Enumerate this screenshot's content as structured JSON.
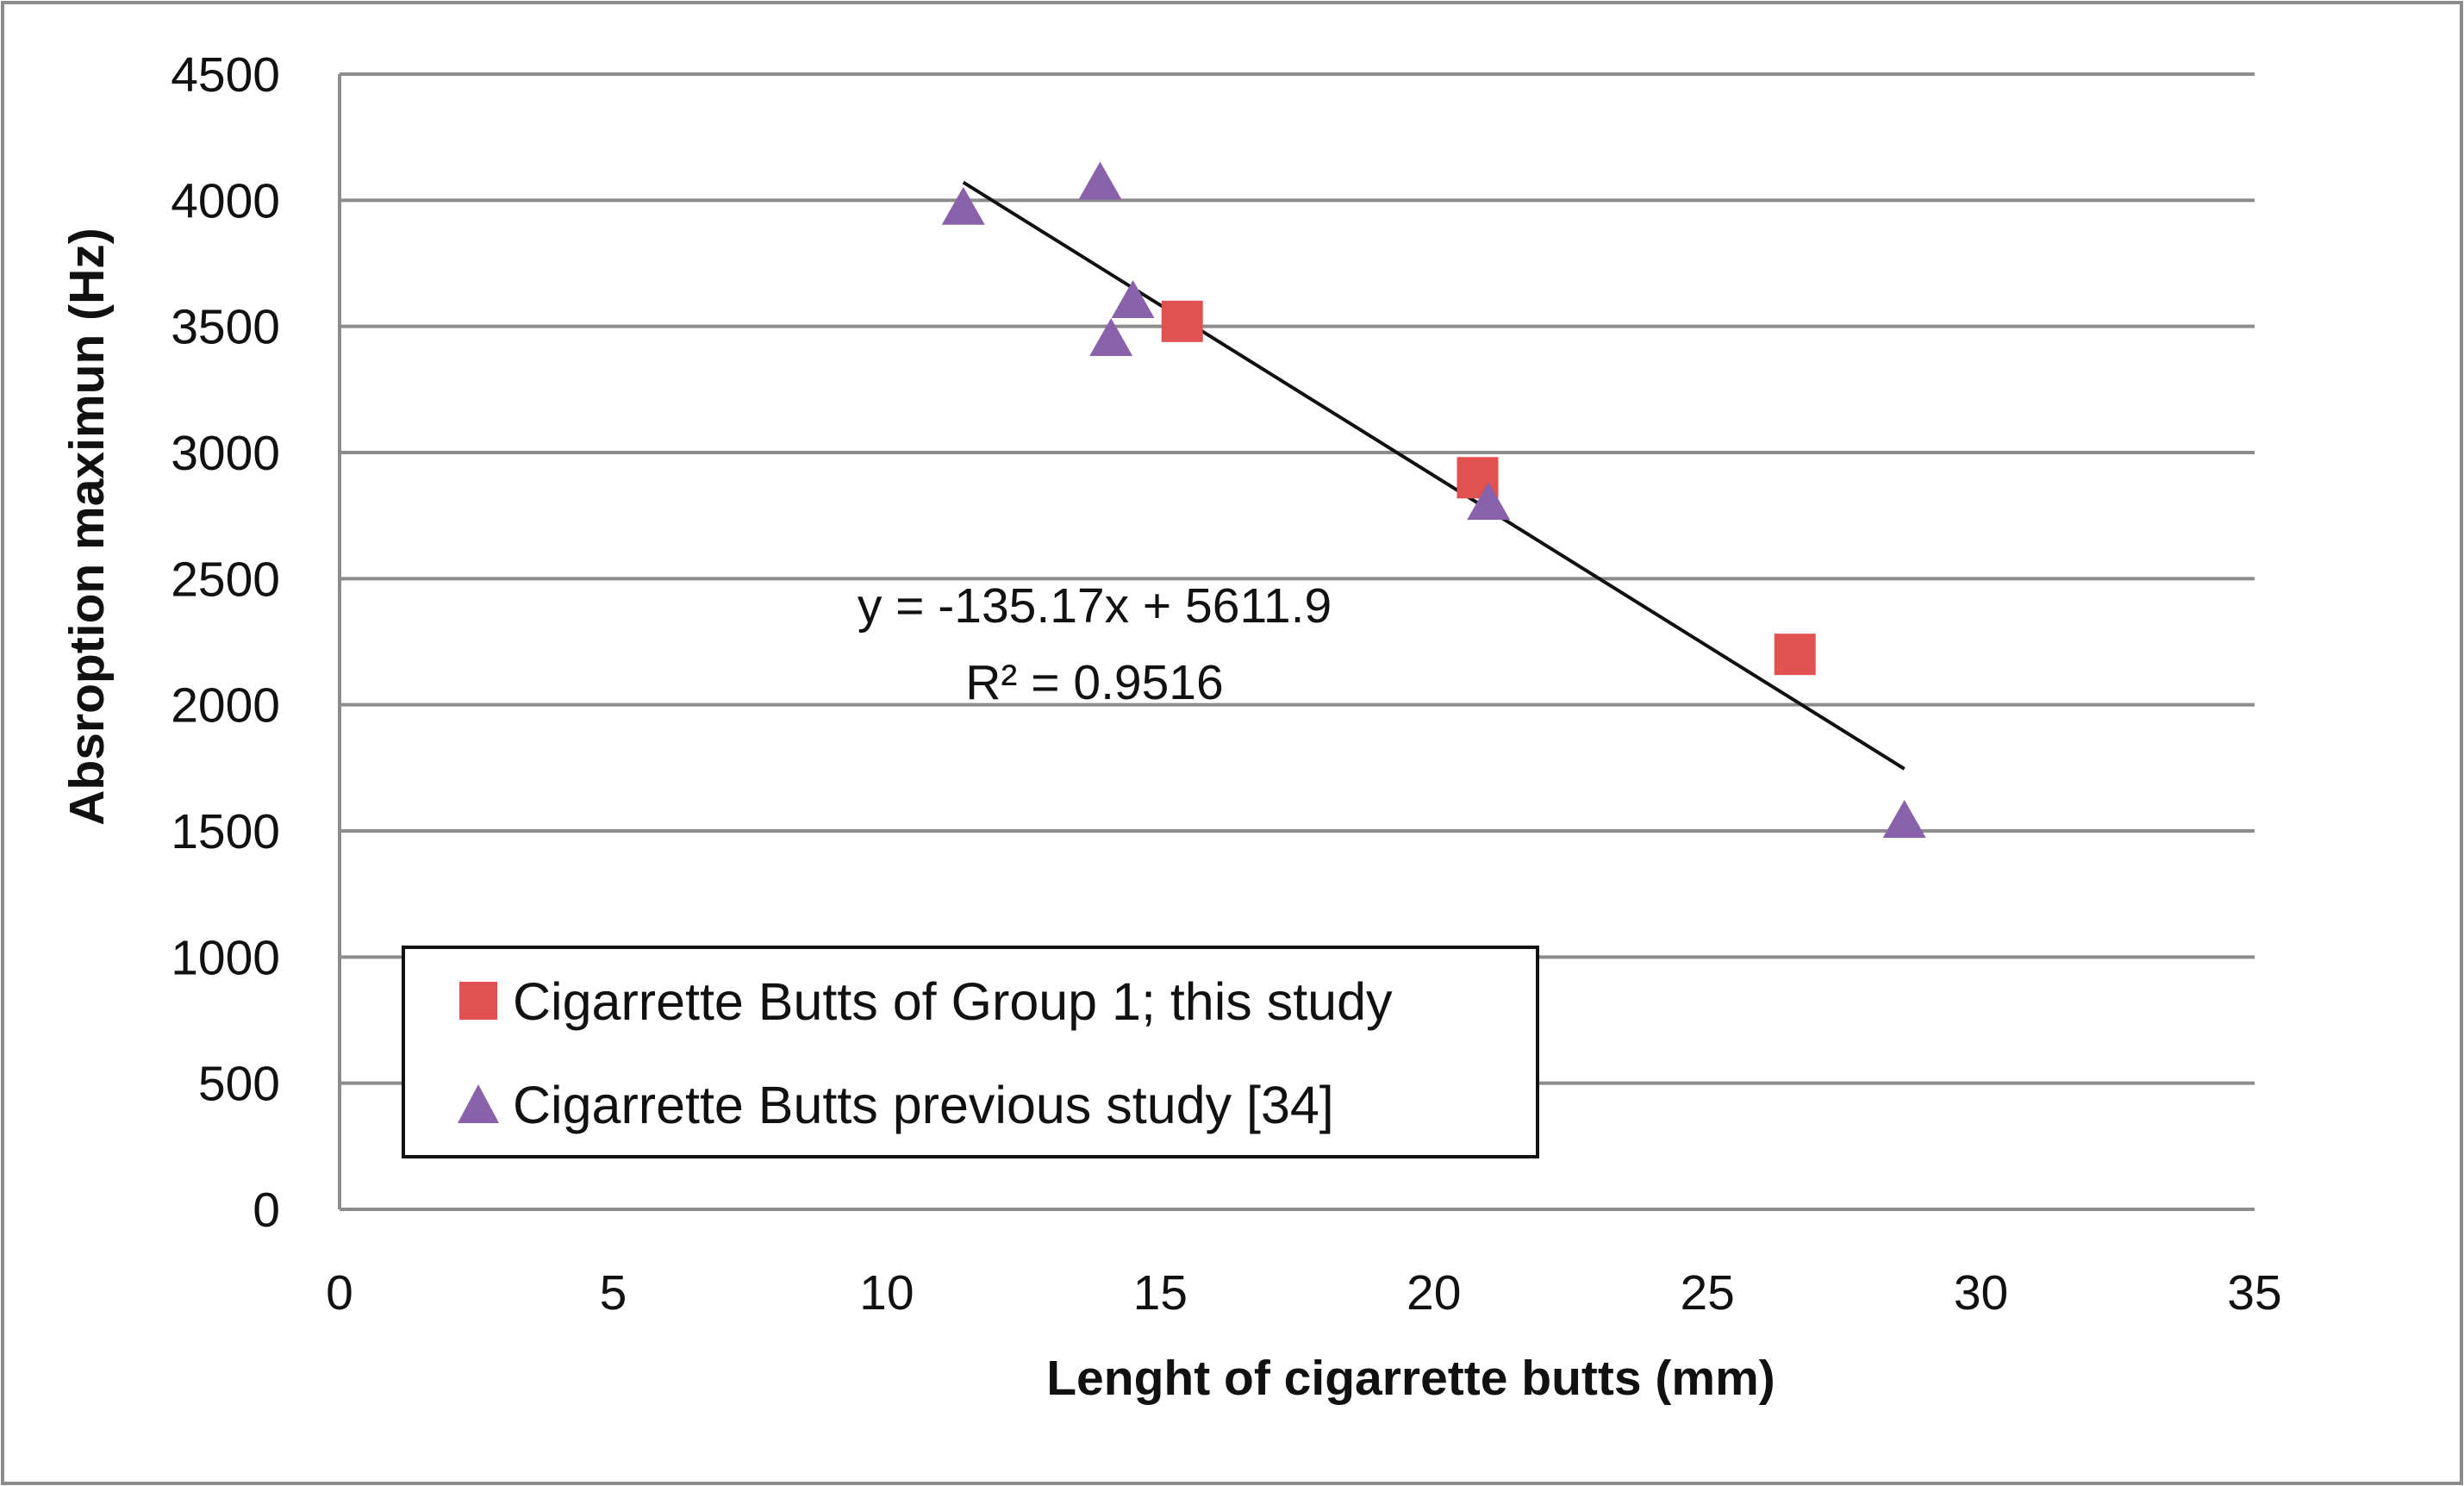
{
  "chart_data": {
    "type": "scatter",
    "xlabel": "Lenght of cigarrette butts  (mm)",
    "ylabel": "Absroption maximun (Hz)",
    "xlim": [
      0,
      35
    ],
    "ylim": [
      0,
      4500
    ],
    "x_ticks": [
      0,
      5,
      10,
      15,
      20,
      25,
      30,
      35
    ],
    "y_ticks": [
      0,
      500,
      1000,
      1500,
      2000,
      2500,
      3000,
      3500,
      4000,
      4500
    ],
    "grid": "horizontal",
    "legend_position": "bottom-left",
    "series": [
      {
        "name": "Cigarrette Butts of Group 1; this study",
        "marker": "square",
        "color": "#e0514f",
        "points": [
          {
            "x": 15.4,
            "y": 3520
          },
          {
            "x": 20.8,
            "y": 2900
          },
          {
            "x": 26.6,
            "y": 2200
          }
        ]
      },
      {
        "name": "Cigarrette Butts previous study [34]",
        "marker": "triangle",
        "color": "#8a62ac",
        "points": [
          {
            "x": 11.4,
            "y": 3960
          },
          {
            "x": 13.9,
            "y": 4060
          },
          {
            "x": 14.5,
            "y": 3590
          },
          {
            "x": 14.1,
            "y": 3440
          },
          {
            "x": 21.0,
            "y": 2790
          },
          {
            "x": 28.6,
            "y": 1530
          }
        ]
      }
    ],
    "trendline": {
      "slope": -135.17,
      "intercept": 5611.9,
      "x_range": [
        11.4,
        28.6
      ],
      "equation": "y = -135.17x + 5611.9",
      "r_squared": "R² = 0.9516"
    }
  }
}
